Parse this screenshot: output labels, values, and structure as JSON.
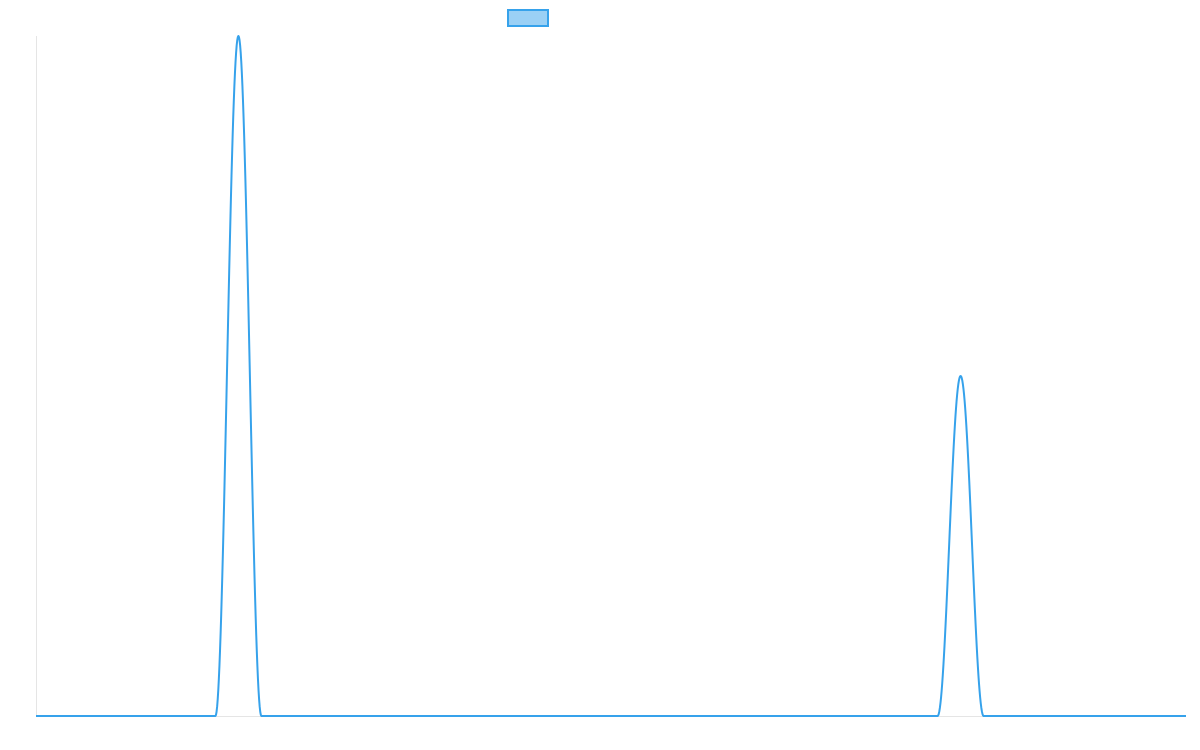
{
  "chart_data": {
    "type": "line",
    "title": "",
    "xlabel": "",
    "ylabel": "",
    "xlim": [
      0,
      100
    ],
    "ylim": [
      0,
      100
    ],
    "grid": false,
    "legend": {
      "placement": "top-center",
      "entries": [
        {
          "name": ""
        }
      ]
    },
    "series": [
      {
        "name": "",
        "color": "#36A2EB",
        "fill": "#9AD0F5",
        "peaks": [
          {
            "center": 17.6,
            "height": 100,
            "halfwidth": 2.0
          },
          {
            "center": 80.4,
            "height": 50,
            "halfwidth": 2.0
          }
        ],
        "baseline": 0
      }
    ]
  }
}
